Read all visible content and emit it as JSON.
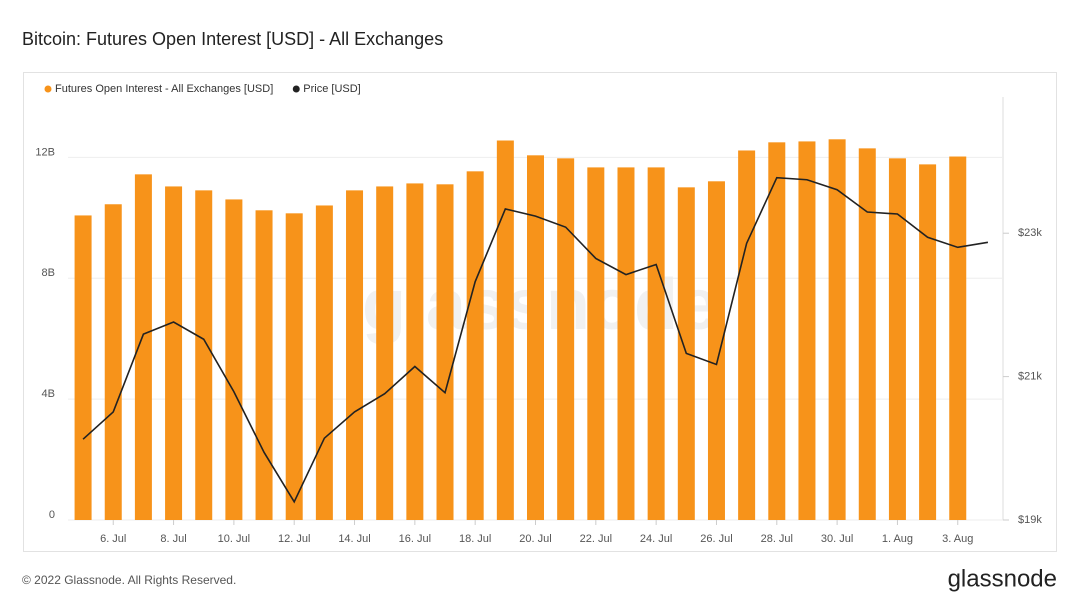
{
  "chart_data": {
    "type": "bar-line",
    "title": "Bitcoin: Futures Open Interest [USD] - All Exchanges",
    "categories": [
      null,
      "6. Jul",
      null,
      "8. Jul",
      null,
      "10. Jul",
      null,
      "12. Jul",
      null,
      "14. Jul",
      null,
      "16. Jul",
      null,
      "18. Jul",
      null,
      "20. Jul",
      null,
      "22. Jul",
      null,
      "24. Jul",
      null,
      "26. Jul",
      null,
      "28. Jul",
      null,
      "30. Jul",
      null,
      "1. Aug",
      null,
      "3. Aug",
      null
    ],
    "series": [
      {
        "name": "Futures Open Interest - All Exchanges [USD]",
        "color": "#f7931a",
        "kind": "bar",
        "values": [
          10080000000,
          10450000000,
          11440000000,
          11040000000,
          10910000000,
          10610000000,
          10250000000,
          10150000000,
          10410000000,
          10910000000,
          11040000000,
          11140000000,
          11110000000,
          11540000000,
          12560000000,
          12070000000,
          11970000000,
          11670000000,
          11670000000,
          11670000000,
          11010000000,
          11210000000,
          12230000000,
          12500000000,
          12530000000,
          12600000000,
          12300000000,
          11970000000,
          11770000000,
          12030000000,
          null
        ]
      },
      {
        "name": "Price [USD]",
        "color": "#222222",
        "kind": "line",
        "axis": "y2",
        "values": [
          20127,
          20507,
          21592,
          21761,
          21521,
          20789,
          19944,
          19254,
          20141,
          20507,
          20761,
          21141,
          20775,
          22324,
          23338,
          23239,
          23085,
          22648,
          22423,
          22563,
          21324,
          21169,
          22859,
          23775,
          23746,
          23606,
          23296,
          23268,
          22944,
          22803,
          22873
        ]
      }
    ],
    "ylim": [
      0,
      14000000000
    ],
    "yticks": [
      0,
      {
        "value": 4000000000,
        "label": "4B"
      },
      {
        "value": 8000000000,
        "label": "8B"
      },
      {
        "value": 12000000000,
        "label": "12B"
      }
    ],
    "y2lim": [
      19000,
      24900
    ],
    "y2ticks": [
      {
        "value": 19000,
        "label": "$19k"
      },
      {
        "value": 21000,
        "label": "$21k"
      },
      {
        "value": 23000,
        "label": "$23k"
      }
    ],
    "grid": true,
    "legend": "top-left",
    "watermark": "glassnode",
    "footer": "© 2022 Glassnode. All Rights Reserved.",
    "logo": "glassnode"
  }
}
